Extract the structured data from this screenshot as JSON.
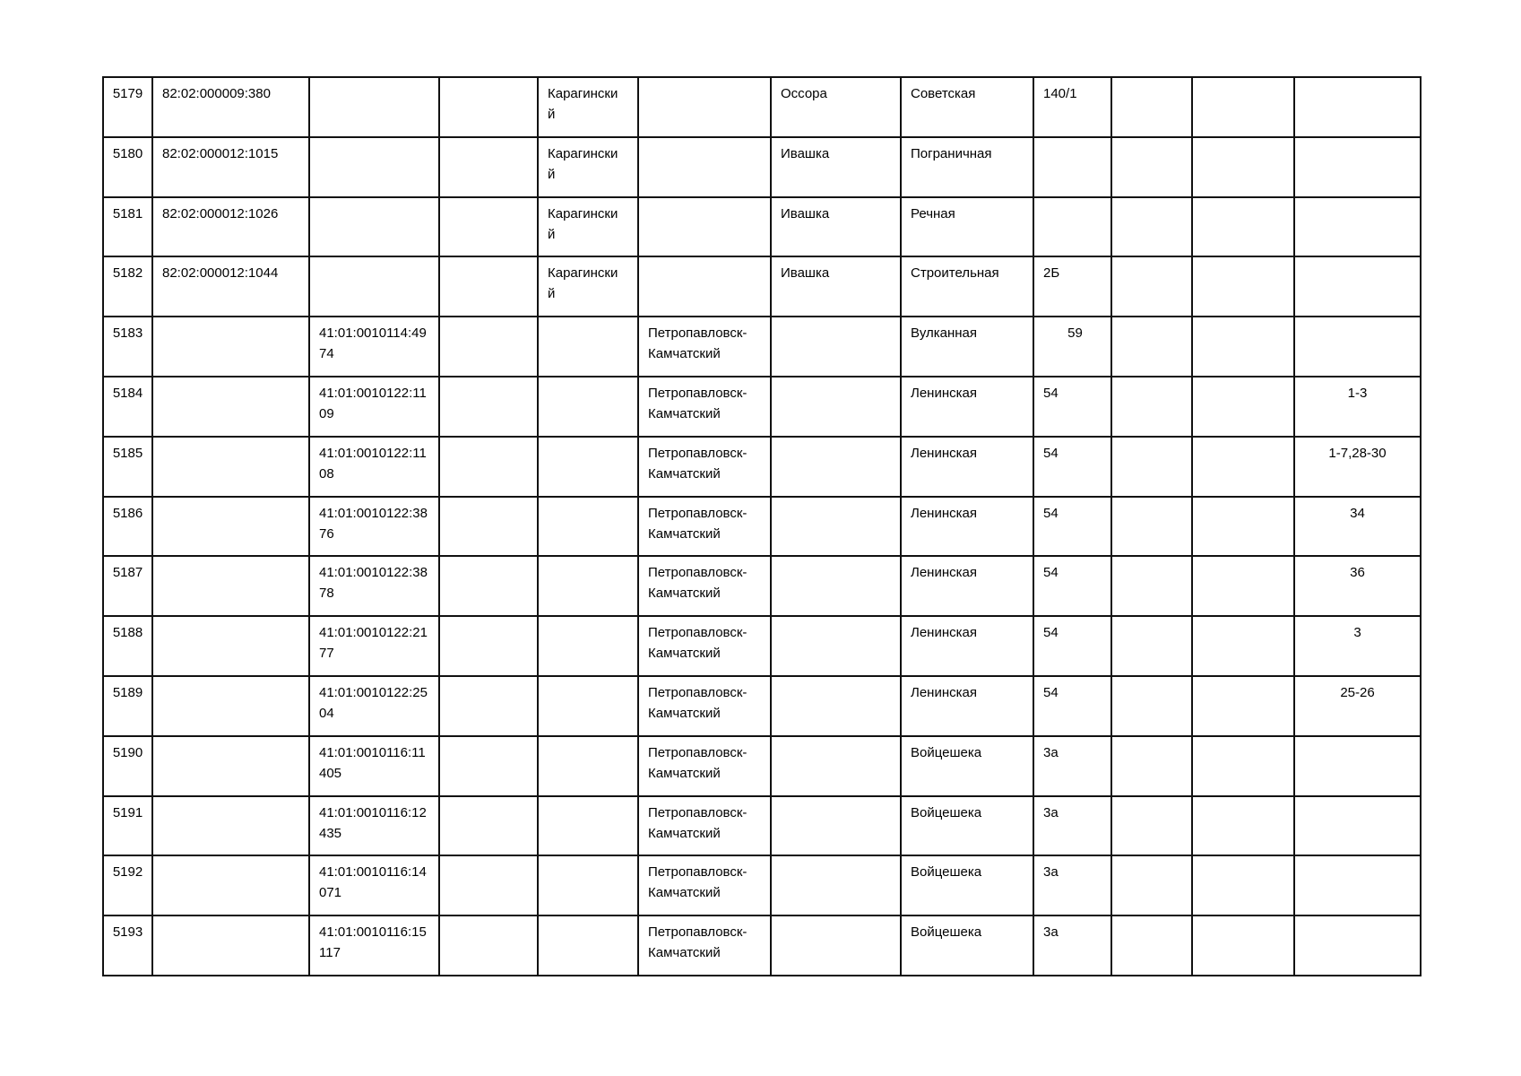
{
  "colors": {
    "background": "#ffffff",
    "grid_border": "#111111",
    "text": "#000000"
  },
  "table": {
    "columns": [
      {
        "key": "num"
      },
      {
        "key": "cad_82"
      },
      {
        "key": "cad_41"
      },
      {
        "key": "col_4"
      },
      {
        "key": "district"
      },
      {
        "key": "city"
      },
      {
        "key": "settlement"
      },
      {
        "key": "street"
      },
      {
        "key": "house"
      },
      {
        "key": "col_10"
      },
      {
        "key": "col_11"
      },
      {
        "key": "apartments"
      }
    ],
    "rows": [
      {
        "num": "5179",
        "cad_82": "82:02:000009:380",
        "cad_41": "",
        "col_4": "",
        "district": "Карагински\nй",
        "city": "",
        "settlement": "Оссора",
        "street": "Советская",
        "house": "140/1",
        "col_10": "",
        "col_11": "",
        "apartments": ""
      },
      {
        "num": "5180",
        "cad_82": "82:02:000012:1015",
        "cad_41": "",
        "col_4": "",
        "district": "Карагински\nй",
        "city": "",
        "settlement": "Ивашка",
        "street": "Пограничная",
        "house": "",
        "col_10": "",
        "col_11": "",
        "apartments": ""
      },
      {
        "num": "5181",
        "cad_82": "82:02:000012:1026",
        "cad_41": "",
        "col_4": "",
        "district": "Карагински\nй",
        "city": "",
        "settlement": "Ивашка",
        "street": "Речная",
        "house": "",
        "col_10": "",
        "col_11": "",
        "apartments": ""
      },
      {
        "num": "5182",
        "cad_82": "82:02:000012:1044",
        "cad_41": "",
        "col_4": "",
        "district": "Карагински\nй",
        "city": "",
        "settlement": "Ивашка",
        "street": "Строительная",
        "house": "2Б",
        "col_10": "",
        "col_11": "",
        "apartments": ""
      },
      {
        "num": "5183",
        "cad_82": "",
        "cad_41": "41:01:0010114:49\n74",
        "col_4": "",
        "district": "",
        "city": "Петропавловск-\nКамчатский",
        "settlement": "",
        "street": "Вулканная",
        "house": "59",
        "house_align": "center",
        "col_10": "",
        "col_11": "",
        "apartments": ""
      },
      {
        "num": "5184",
        "cad_82": "",
        "cad_41": "41:01:0010122:11\n09",
        "col_4": "",
        "district": "",
        "city": "Петропавловск-\nКамчатский",
        "settlement": "",
        "street": "Ленинская",
        "house": "54",
        "col_10": "",
        "col_11": "",
        "apartments": "1-3"
      },
      {
        "num": "5185",
        "cad_82": "",
        "cad_41": "41:01:0010122:11\n08",
        "col_4": "",
        "district": "",
        "city": "Петропавловск-\nКамчатский",
        "settlement": "",
        "street": "Ленинская",
        "house": "54",
        "col_10": "",
        "col_11": "",
        "apartments": "1-7,28-30"
      },
      {
        "num": "5186",
        "cad_82": "",
        "cad_41": "41:01:0010122:38\n76",
        "col_4": "",
        "district": "",
        "city": "Петропавловск-\nКамчатский",
        "settlement": "",
        "street": "Ленинская",
        "house": "54",
        "col_10": "",
        "col_11": "",
        "apartments": "34"
      },
      {
        "num": "5187",
        "cad_82": "",
        "cad_41": "41:01:0010122:38\n78",
        "col_4": "",
        "district": "",
        "city": "Петропавловск-\nКамчатский",
        "settlement": "",
        "street": "Ленинская",
        "house": "54",
        "col_10": "",
        "col_11": "",
        "apartments": "36"
      },
      {
        "num": "5188",
        "cad_82": "",
        "cad_41": "41:01:0010122:21\n77",
        "col_4": "",
        "district": "",
        "city": "Петропавловск-\nКамчатский",
        "settlement": "",
        "street": "Ленинская",
        "house": "54",
        "col_10": "",
        "col_11": "",
        "apartments": "3"
      },
      {
        "num": "5189",
        "cad_82": "",
        "cad_41": "41:01:0010122:25\n04",
        "col_4": "",
        "district": "",
        "city": "Петропавловск-\nКамчатский",
        "settlement": "",
        "street": "Ленинская",
        "house": "54",
        "col_10": "",
        "col_11": "",
        "apartments": "25-26"
      },
      {
        "num": "5190",
        "cad_82": "",
        "cad_41": "41:01:0010116:11\n405",
        "col_4": "",
        "district": "",
        "city": "Петропавловск-\nКамчатский",
        "settlement": "",
        "street": "Войцешека",
        "house": "3а",
        "col_10": "",
        "col_11": "",
        "apartments": ""
      },
      {
        "num": "5191",
        "cad_82": "",
        "cad_41": "41:01:0010116:12\n435",
        "col_4": "",
        "district": "",
        "city": "Петропавловск-\nКамчатский",
        "settlement": "",
        "street": "Войцешека",
        "house": "3а",
        "col_10": "",
        "col_11": "",
        "apartments": ""
      },
      {
        "num": "5192",
        "cad_82": "",
        "cad_41": "41:01:0010116:14\n071",
        "col_4": "",
        "district": "",
        "city": "Петропавловск-\nКамчатский",
        "settlement": "",
        "street": "Войцешека",
        "house": "3а",
        "col_10": "",
        "col_11": "",
        "apartments": ""
      },
      {
        "num": "5193",
        "cad_82": "",
        "cad_41": "41:01:0010116:15\n117",
        "col_4": "",
        "district": "",
        "city": "Петропавловск-\nКамчатский",
        "settlement": "",
        "street": "Войцешека",
        "house": "3а",
        "col_10": "",
        "col_11": "",
        "apartments": ""
      }
    ]
  }
}
